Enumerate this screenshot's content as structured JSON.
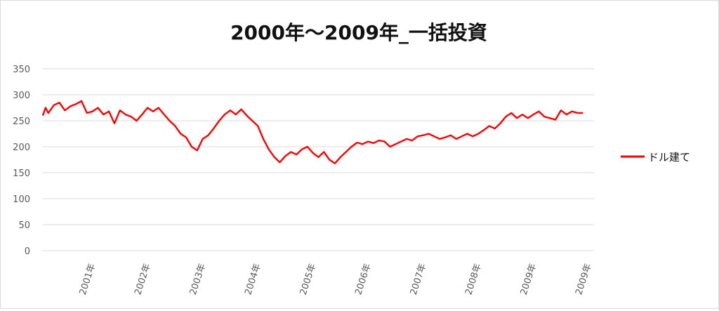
{
  "chart_data": {
    "type": "line",
    "title": "2000年～2009年_一括投資",
    "xlabel": "",
    "ylabel": "",
    "ylim": [
      0,
      350
    ],
    "yticks": [
      0,
      50,
      100,
      150,
      200,
      250,
      300,
      350
    ],
    "x_range": [
      2000.0,
      2010.0
    ],
    "x_ticks": [
      {
        "x": 2001,
        "label": "2001年"
      },
      {
        "x": 2002,
        "label": "2002年"
      },
      {
        "x": 2003,
        "label": "2003年"
      },
      {
        "x": 2004,
        "label": "2004年"
      },
      {
        "x": 2005,
        "label": "2005年"
      },
      {
        "x": 2006,
        "label": "2006年"
      },
      {
        "x": 2007,
        "label": "2007年"
      },
      {
        "x": 2008,
        "label": "2008年"
      },
      {
        "x": 2009,
        "label": "2009年"
      },
      {
        "x": 2010,
        "label": "2009年"
      }
    ],
    "grid": true,
    "legend_position": "right",
    "series": [
      {
        "name": "ドル建て",
        "color": "#ff0000",
        "points": [
          [
            2000.0,
            260
          ],
          [
            2000.05,
            275
          ],
          [
            2000.1,
            265
          ],
          [
            2000.2,
            280
          ],
          [
            2000.3,
            285
          ],
          [
            2000.4,
            270
          ],
          [
            2000.5,
            278
          ],
          [
            2000.6,
            282
          ],
          [
            2000.7,
            288
          ],
          [
            2000.8,
            265
          ],
          [
            2000.9,
            268
          ],
          [
            2001.0,
            275
          ],
          [
            2001.1,
            262
          ],
          [
            2001.2,
            268
          ],
          [
            2001.3,
            245
          ],
          [
            2001.4,
            270
          ],
          [
            2001.5,
            262
          ],
          [
            2001.6,
            258
          ],
          [
            2001.7,
            250
          ],
          [
            2001.8,
            262
          ],
          [
            2001.9,
            275
          ],
          [
            2002.0,
            268
          ],
          [
            2002.1,
            275
          ],
          [
            2002.2,
            262
          ],
          [
            2002.3,
            250
          ],
          [
            2002.4,
            240
          ],
          [
            2002.5,
            225
          ],
          [
            2002.6,
            218
          ],
          [
            2002.7,
            200
          ],
          [
            2002.8,
            193
          ],
          [
            2002.9,
            215
          ],
          [
            2003.0,
            222
          ],
          [
            2003.1,
            235
          ],
          [
            2003.2,
            250
          ],
          [
            2003.3,
            262
          ],
          [
            2003.4,
            270
          ],
          [
            2003.5,
            262
          ],
          [
            2003.6,
            272
          ],
          [
            2003.7,
            260
          ],
          [
            2003.8,
            250
          ],
          [
            2003.9,
            240
          ],
          [
            2004.0,
            215
          ],
          [
            2004.1,
            195
          ],
          [
            2004.2,
            180
          ],
          [
            2004.3,
            170
          ],
          [
            2004.4,
            182
          ],
          [
            2004.5,
            190
          ],
          [
            2004.6,
            185
          ],
          [
            2004.7,
            195
          ],
          [
            2004.8,
            200
          ],
          [
            2004.9,
            188
          ],
          [
            2005.0,
            180
          ],
          [
            2005.1,
            190
          ],
          [
            2005.2,
            175
          ],
          [
            2005.3,
            168
          ],
          [
            2005.4,
            180
          ],
          [
            2005.5,
            190
          ],
          [
            2005.6,
            200
          ],
          [
            2005.7,
            208
          ],
          [
            2005.8,
            205
          ],
          [
            2005.9,
            210
          ],
          [
            2006.0,
            207
          ],
          [
            2006.1,
            212
          ],
          [
            2006.2,
            210
          ],
          [
            2006.3,
            200
          ],
          [
            2006.4,
            205
          ],
          [
            2006.5,
            210
          ],
          [
            2006.6,
            215
          ],
          [
            2006.7,
            212
          ],
          [
            2006.8,
            220
          ],
          [
            2006.9,
            222
          ],
          [
            2007.0,
            225
          ],
          [
            2007.1,
            220
          ],
          [
            2007.2,
            215
          ],
          [
            2007.3,
            218
          ],
          [
            2007.4,
            222
          ],
          [
            2007.5,
            215
          ],
          [
            2007.6,
            220
          ],
          [
            2007.7,
            225
          ],
          [
            2007.8,
            220
          ],
          [
            2007.9,
            225
          ],
          [
            2008.0,
            232
          ],
          [
            2008.1,
            240
          ],
          [
            2008.2,
            235
          ],
          [
            2008.3,
            245
          ],
          [
            2008.4,
            258
          ],
          [
            2008.5,
            265
          ],
          [
            2008.6,
            255
          ],
          [
            2008.7,
            262
          ],
          [
            2008.8,
            255
          ],
          [
            2008.9,
            262
          ],
          [
            2009.0,
            268
          ],
          [
            2009.1,
            258
          ],
          [
            2009.2,
            255
          ],
          [
            2009.3,
            252
          ],
          [
            2009.4,
            270
          ],
          [
            2009.5,
            262
          ],
          [
            2009.6,
            268
          ],
          [
            2009.7,
            265
          ],
          [
            2009.8,
            265
          ]
        ]
      }
    ]
  }
}
